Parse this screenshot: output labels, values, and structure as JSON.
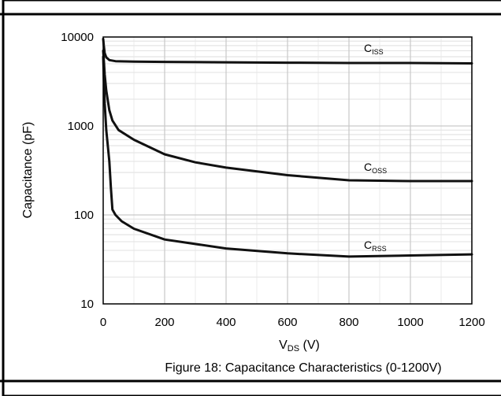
{
  "chart_data": {
    "type": "line",
    "caption": "Figure 18: Capacitance Characteristics (0-1200V)",
    "xlabel_main": "V",
    "xlabel_sub": "DS",
    "xlabel_unit": " (V)",
    "ylabel": "Capacitance (pF)",
    "x_scale": "linear",
    "y_scale": "log",
    "xlim": [
      0,
      1200
    ],
    "ylim": [
      10,
      10000
    ],
    "grid": true,
    "x_ticks": [
      0,
      200,
      400,
      600,
      800,
      1000,
      1200
    ],
    "y_ticks": [
      10,
      100,
      1000,
      10000
    ],
    "series": [
      {
        "name_main": "C",
        "name_sub": "ISS",
        "x": [
          0,
          2,
          5,
          10,
          20,
          40,
          100,
          200,
          400,
          600,
          800,
          1000,
          1200
        ],
        "y": [
          9500,
          8000,
          6600,
          5900,
          5500,
          5350,
          5300,
          5250,
          5200,
          5150,
          5100,
          5100,
          5050
        ]
      },
      {
        "name_main": "C",
        "name_sub": "OSS",
        "x": [
          0,
          2,
          5,
          10,
          20,
          30,
          50,
          100,
          200,
          300,
          400,
          600,
          800,
          1000,
          1200
        ],
        "y": [
          7000,
          5500,
          3800,
          2500,
          1500,
          1150,
          900,
          700,
          480,
          390,
          340,
          280,
          245,
          240,
          240
        ]
      },
      {
        "name_main": "C",
        "name_sub": "RSS",
        "x": [
          0,
          2,
          5,
          10,
          20,
          25,
          30,
          40,
          60,
          100,
          200,
          400,
          600,
          800,
          1000,
          1200
        ],
        "y": [
          6000,
          3500,
          1800,
          900,
          400,
          200,
          115,
          100,
          85,
          70,
          53,
          42,
          37,
          34,
          35,
          36
        ]
      }
    ]
  }
}
